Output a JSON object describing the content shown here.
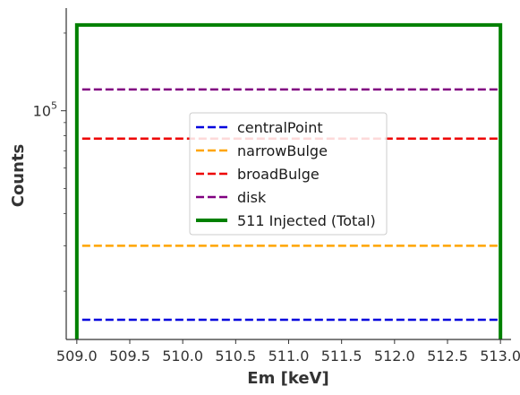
{
  "chart_data": {
    "type": "line",
    "title": "",
    "xlabel": "Em [keV]",
    "ylabel": "Counts",
    "yscale": "log",
    "xlim": [
      508.9,
      513.1
    ],
    "ylim": [
      13000,
      250000
    ],
    "xticks": [
      {
        "value": 509.0,
        "label": "509.0"
      },
      {
        "value": 509.5,
        "label": "509.5"
      },
      {
        "value": 510.0,
        "label": "510.0"
      },
      {
        "value": 510.5,
        "label": "510.5"
      },
      {
        "value": 511.0,
        "label": "511.0"
      },
      {
        "value": 511.5,
        "label": "511.5"
      },
      {
        "value": 512.0,
        "label": "512.0"
      },
      {
        "value": 512.5,
        "label": "512.5"
      },
      {
        "value": 513.0,
        "label": "513.0"
      }
    ],
    "yticks_major": [
      {
        "value": 100000,
        "base": "10",
        "exp": "5"
      }
    ],
    "yticks_minor": [
      20000,
      30000,
      40000,
      50000,
      60000,
      70000,
      80000,
      90000,
      200000
    ],
    "grid": false,
    "legend_position": "center",
    "series": [
      {
        "name": "centralPoint",
        "color": "#0000dd",
        "style": "dashed",
        "x": [
          509.0,
          513.0
        ],
        "y": [
          15500,
          15500
        ]
      },
      {
        "name": "narrowBulge",
        "color": "#ffa500",
        "style": "dashed",
        "x": [
          509.0,
          513.0
        ],
        "y": [
          30000,
          30000
        ]
      },
      {
        "name": "broadBulge",
        "color": "#ee0000",
        "style": "dashed",
        "x": [
          509.0,
          513.0
        ],
        "y": [
          78000,
          78000
        ]
      },
      {
        "name": "disk",
        "color": "#800080",
        "style": "dashed",
        "x": [
          509.0,
          513.0
        ],
        "y": [
          121000,
          121000
        ]
      },
      {
        "name": "511 Injected (Total)",
        "color": "#008000",
        "style": "solid-step",
        "x": [
          509.0,
          513.0
        ],
        "y": [
          215000,
          215000
        ]
      }
    ]
  }
}
